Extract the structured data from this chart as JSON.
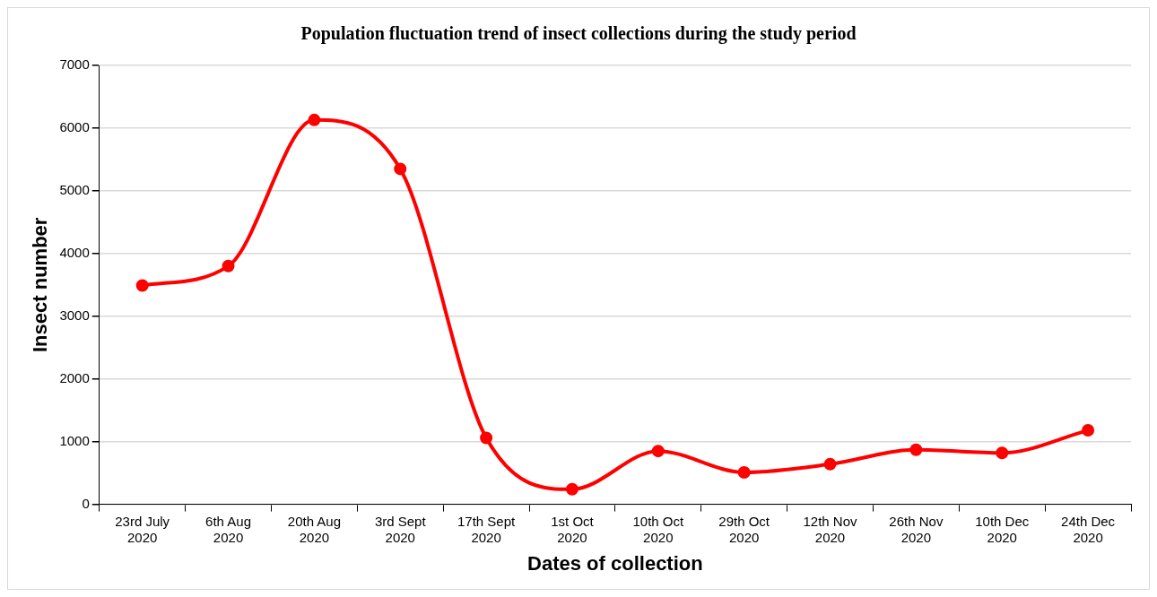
{
  "chart_data": {
    "type": "line",
    "title": "Population fluctuation trend of insect collections during the study period",
    "xlabel": "Dates of collection",
    "ylabel": "Insect number",
    "categories": [
      "23rd July 2020",
      "6th Aug 2020",
      "20th Aug 2020",
      "3rd Sept 2020",
      "17th Sept 2020",
      "1st Oct 2020",
      "10th Oct 2020",
      "29th Oct 2020",
      "12th Nov 2020",
      "26th Nov 2020",
      "10th Dec 2020",
      "24th Dec 2020"
    ],
    "series": [
      {
        "color": "#ff0000",
        "values": [
          3490,
          3800,
          6130,
          5350,
          1060,
          240,
          850,
          510,
          640,
          870,
          820,
          1180
        ]
      }
    ],
    "ylim": [
      0,
      7000
    ],
    "yticks": [
      0,
      1000,
      2000,
      3000,
      4000,
      5000,
      6000,
      7000
    ],
    "grid": "y",
    "legend": false,
    "marker": "circle",
    "line_style": "solid"
  }
}
